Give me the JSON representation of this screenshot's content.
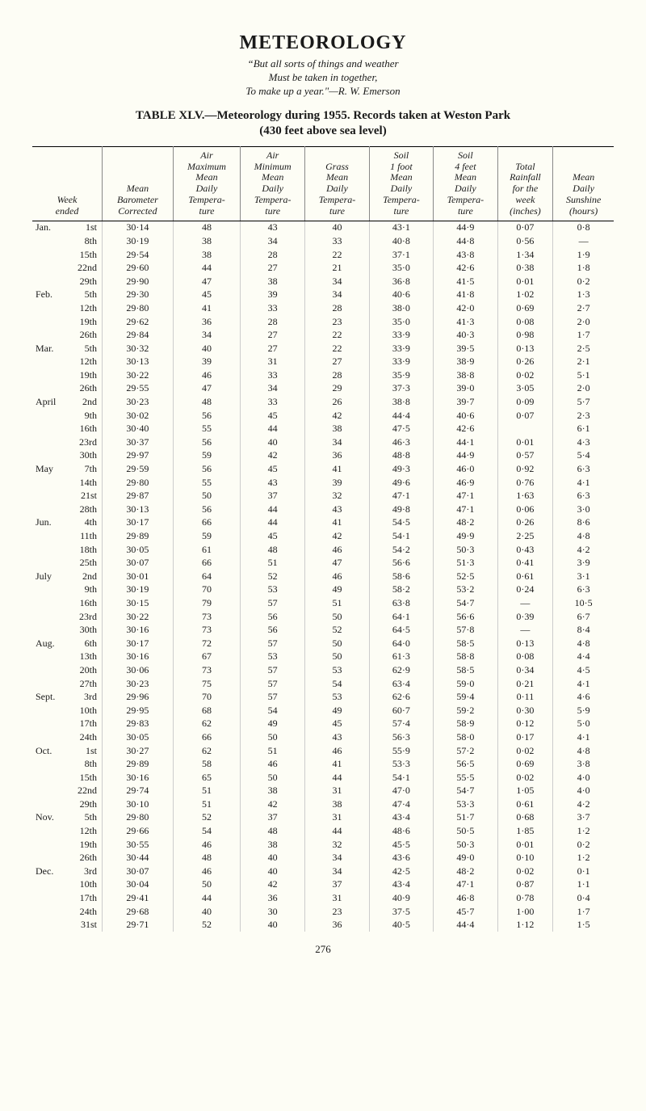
{
  "page": {
    "title": "METEOROLOGY",
    "epigraph_line1": "But all sorts of things and weather",
    "epigraph_line2": "Must be taken in together,",
    "epigraph_line3": "To make up a year.\"—R. W. Emerson",
    "table_title": "TABLE XLV.—Meteorology during 1955.  Records taken at Weston Park",
    "subtitle": "(430 feet above sea level)",
    "page_number": "276"
  },
  "columns": [
    "Week ended",
    "Mean Barometer Corrected",
    "Air Maximum Mean Daily Tempera- ture",
    "Air Minimum Mean Daily Tempera- ture",
    "Grass Mean Daily Tempera- ture",
    "Soil 1 foot Mean Daily Tempera- ture",
    "Soil 4 feet Mean Daily Tempera- ture",
    "Total Rainfall for the week (inches)",
    "Mean Daily Sunshine (hours)"
  ],
  "rows": [
    {
      "month": "Jan.",
      "day": "1st",
      "baro": "30·14",
      "max": "48",
      "min": "43",
      "grass": "40",
      "soil1": "43·1",
      "soil4": "44·9",
      "rain": "0·07",
      "sun": "0·8"
    },
    {
      "month": "",
      "day": "8th",
      "baro": "30·19",
      "max": "38",
      "min": "34",
      "grass": "33",
      "soil1": "40·8",
      "soil4": "44·8",
      "rain": "0·56",
      "sun": "—"
    },
    {
      "month": "",
      "day": "15th",
      "baro": "29·54",
      "max": "38",
      "min": "28",
      "grass": "22",
      "soil1": "37·1",
      "soil4": "43·8",
      "rain": "1·34",
      "sun": "1·9"
    },
    {
      "month": "",
      "day": "22nd",
      "baro": "29·60",
      "max": "44",
      "min": "27",
      "grass": "21",
      "soil1": "35·0",
      "soil4": "42·6",
      "rain": "0·38",
      "sun": "1·8"
    },
    {
      "month": "",
      "day": "29th",
      "baro": "29·90",
      "max": "47",
      "min": "38",
      "grass": "34",
      "soil1": "36·8",
      "soil4": "41·5",
      "rain": "0·01",
      "sun": "0·2"
    },
    {
      "month": "Feb.",
      "day": "5th",
      "baro": "29·30",
      "max": "45",
      "min": "39",
      "grass": "34",
      "soil1": "40·6",
      "soil4": "41·8",
      "rain": "1·02",
      "sun": "1·3"
    },
    {
      "month": "",
      "day": "12th",
      "baro": "29·80",
      "max": "41",
      "min": "33",
      "grass": "28",
      "soil1": "38·0",
      "soil4": "42·0",
      "rain": "0·69",
      "sun": "2·7"
    },
    {
      "month": "",
      "day": "19th",
      "baro": "29·62",
      "max": "36",
      "min": "28",
      "grass": "23",
      "soil1": "35·0",
      "soil4": "41·3",
      "rain": "0·08",
      "sun": "2·0"
    },
    {
      "month": "",
      "day": "26th",
      "baro": "29·84",
      "max": "34",
      "min": "27",
      "grass": "22",
      "soil1": "33·9",
      "soil4": "40·3",
      "rain": "0·98",
      "sun": "1·7"
    },
    {
      "month": "Mar.",
      "day": "5th",
      "baro": "30·32",
      "max": "40",
      "min": "27",
      "grass": "22",
      "soil1": "33·9",
      "soil4": "39·5",
      "rain": "0·13",
      "sun": "2·5"
    },
    {
      "month": "",
      "day": "12th",
      "baro": "30·13",
      "max": "39",
      "min": "31",
      "grass": "27",
      "soil1": "33·9",
      "soil4": "38·9",
      "rain": "0·26",
      "sun": "2·1"
    },
    {
      "month": "",
      "day": "19th",
      "baro": "30·22",
      "max": "46",
      "min": "33",
      "grass": "28",
      "soil1": "35·9",
      "soil4": "38·8",
      "rain": "0·02",
      "sun": "5·1"
    },
    {
      "month": "",
      "day": "26th",
      "baro": "29·55",
      "max": "47",
      "min": "34",
      "grass": "29",
      "soil1": "37·3",
      "soil4": "39·0",
      "rain": "3·05",
      "sun": "2·0"
    },
    {
      "month": "April",
      "day": "2nd",
      "baro": "30·23",
      "max": "48",
      "min": "33",
      "grass": "26",
      "soil1": "38·8",
      "soil4": "39·7",
      "rain": "0·09",
      "sun": "5·7"
    },
    {
      "month": "",
      "day": "9th",
      "baro": "30·02",
      "max": "56",
      "min": "45",
      "grass": "42",
      "soil1": "44·4",
      "soil4": "40·6",
      "rain": "0·07",
      "sun": "2·3"
    },
    {
      "month": "",
      "day": "16th",
      "baro": "30·40",
      "max": "55",
      "min": "44",
      "grass": "38",
      "soil1": "47·5",
      "soil4": "42·6",
      "rain": "",
      "sun": "6·1"
    },
    {
      "month": "",
      "day": "23rd",
      "baro": "30·37",
      "max": "56",
      "min": "40",
      "grass": "34",
      "soil1": "46·3",
      "soil4": "44·1",
      "rain": "0·01",
      "sun": "4·3"
    },
    {
      "month": "",
      "day": "30th",
      "baro": "29·97",
      "max": "59",
      "min": "42",
      "grass": "36",
      "soil1": "48·8",
      "soil4": "44·9",
      "rain": "0·57",
      "sun": "5·4"
    },
    {
      "month": "May",
      "day": "7th",
      "baro": "29·59",
      "max": "56",
      "min": "45",
      "grass": "41",
      "soil1": "49·3",
      "soil4": "46·0",
      "rain": "0·92",
      "sun": "6·3"
    },
    {
      "month": "",
      "day": "14th",
      "baro": "29·80",
      "max": "55",
      "min": "43",
      "grass": "39",
      "soil1": "49·6",
      "soil4": "46·9",
      "rain": "0·76",
      "sun": "4·1"
    },
    {
      "month": "",
      "day": "21st",
      "baro": "29·87",
      "max": "50",
      "min": "37",
      "grass": "32",
      "soil1": "47·1",
      "soil4": "47·1",
      "rain": "1·63",
      "sun": "6·3"
    },
    {
      "month": "",
      "day": "28th",
      "baro": "30·13",
      "max": "56",
      "min": "44",
      "grass": "43",
      "soil1": "49·8",
      "soil4": "47·1",
      "rain": "0·06",
      "sun": "3·0"
    },
    {
      "month": "Jun.",
      "day": "4th",
      "baro": "30·17",
      "max": "66",
      "min": "44",
      "grass": "41",
      "soil1": "54·5",
      "soil4": "48·2",
      "rain": "0·26",
      "sun": "8·6"
    },
    {
      "month": "",
      "day": "11th",
      "baro": "29·89",
      "max": "59",
      "min": "45",
      "grass": "42",
      "soil1": "54·1",
      "soil4": "49·9",
      "rain": "2·25",
      "sun": "4·8"
    },
    {
      "month": "",
      "day": "18th",
      "baro": "30·05",
      "max": "61",
      "min": "48",
      "grass": "46",
      "soil1": "54·2",
      "soil4": "50·3",
      "rain": "0·43",
      "sun": "4·2"
    },
    {
      "month": "",
      "day": "25th",
      "baro": "30·07",
      "max": "66",
      "min": "51",
      "grass": "47",
      "soil1": "56·6",
      "soil4": "51·3",
      "rain": "0·41",
      "sun": "3·9"
    },
    {
      "month": "July",
      "day": "2nd",
      "baro": "30·01",
      "max": "64",
      "min": "52",
      "grass": "46",
      "soil1": "58·6",
      "soil4": "52·5",
      "rain": "0·61",
      "sun": "3·1"
    },
    {
      "month": "",
      "day": "9th",
      "baro": "30·19",
      "max": "70",
      "min": "53",
      "grass": "49",
      "soil1": "58·2",
      "soil4": "53·2",
      "rain": "0·24",
      "sun": "6·3"
    },
    {
      "month": "",
      "day": "16th",
      "baro": "30·15",
      "max": "79",
      "min": "57",
      "grass": "51",
      "soil1": "63·8",
      "soil4": "54·7",
      "rain": "—",
      "sun": "10·5"
    },
    {
      "month": "",
      "day": "23rd",
      "baro": "30·22",
      "max": "73",
      "min": "56",
      "grass": "50",
      "soil1": "64·1",
      "soil4": "56·6",
      "rain": "0·39",
      "sun": "6·7"
    },
    {
      "month": "",
      "day": "30th",
      "baro": "30·16",
      "max": "73",
      "min": "56",
      "grass": "52",
      "soil1": "64·5",
      "soil4": "57·8",
      "rain": "—",
      "sun": "8·4"
    },
    {
      "month": "Aug.",
      "day": "6th",
      "baro": "30·17",
      "max": "72",
      "min": "57",
      "grass": "50",
      "soil1": "64·0",
      "soil4": "58·5",
      "rain": "0·13",
      "sun": "4·8"
    },
    {
      "month": "",
      "day": "13th",
      "baro": "30·16",
      "max": "67",
      "min": "53",
      "grass": "50",
      "soil1": "61·3",
      "soil4": "58·8",
      "rain": "0·08",
      "sun": "4·4"
    },
    {
      "month": "",
      "day": "20th",
      "baro": "30·06",
      "max": "73",
      "min": "57",
      "grass": "53",
      "soil1": "62·9",
      "soil4": "58·5",
      "rain": "0·34",
      "sun": "4·5"
    },
    {
      "month": "",
      "day": "27th",
      "baro": "30·23",
      "max": "75",
      "min": "57",
      "grass": "54",
      "soil1": "63·4",
      "soil4": "59·0",
      "rain": "0·21",
      "sun": "4·1"
    },
    {
      "month": "Sept.",
      "day": "3rd",
      "baro": "29·96",
      "max": "70",
      "min": "57",
      "grass": "53",
      "soil1": "62·6",
      "soil4": "59·4",
      "rain": "0·11",
      "sun": "4·6"
    },
    {
      "month": "",
      "day": "10th",
      "baro": "29·95",
      "max": "68",
      "min": "54",
      "grass": "49",
      "soil1": "60·7",
      "soil4": "59·2",
      "rain": "0·30",
      "sun": "5·9"
    },
    {
      "month": "",
      "day": "17th",
      "baro": "29·83",
      "max": "62",
      "min": "49",
      "grass": "45",
      "soil1": "57·4",
      "soil4": "58·9",
      "rain": "0·12",
      "sun": "5·0"
    },
    {
      "month": "",
      "day": "24th",
      "baro": "30·05",
      "max": "66",
      "min": "50",
      "grass": "43",
      "soil1": "56·3",
      "soil4": "58·0",
      "rain": "0·17",
      "sun": "4·1"
    },
    {
      "month": "Oct.",
      "day": "1st",
      "baro": "30·27",
      "max": "62",
      "min": "51",
      "grass": "46",
      "soil1": "55·9",
      "soil4": "57·2",
      "rain": "0·02",
      "sun": "4·8"
    },
    {
      "month": "",
      "day": "8th",
      "baro": "29·89",
      "max": "58",
      "min": "46",
      "grass": "41",
      "soil1": "53·3",
      "soil4": "56·5",
      "rain": "0·69",
      "sun": "3·8"
    },
    {
      "month": "",
      "day": "15th",
      "baro": "30·16",
      "max": "65",
      "min": "50",
      "grass": "44",
      "soil1": "54·1",
      "soil4": "55·5",
      "rain": "0·02",
      "sun": "4·0"
    },
    {
      "month": "",
      "day": "22nd",
      "baro": "29·74",
      "max": "51",
      "min": "38",
      "grass": "31",
      "soil1": "47·0",
      "soil4": "54·7",
      "rain": "1·05",
      "sun": "4·0"
    },
    {
      "month": "",
      "day": "29th",
      "baro": "30·10",
      "max": "51",
      "min": "42",
      "grass": "38",
      "soil1": "47·4",
      "soil4": "53·3",
      "rain": "0·61",
      "sun": "4·2"
    },
    {
      "month": "Nov.",
      "day": "5th",
      "baro": "29·80",
      "max": "52",
      "min": "37",
      "grass": "31",
      "soil1": "43·4",
      "soil4": "51·7",
      "rain": "0·68",
      "sun": "3·7"
    },
    {
      "month": "",
      "day": "12th",
      "baro": "29·66",
      "max": "54",
      "min": "48",
      "grass": "44",
      "soil1": "48·6",
      "soil4": "50·5",
      "rain": "1·85",
      "sun": "1·2"
    },
    {
      "month": "",
      "day": "19th",
      "baro": "30·55",
      "max": "46",
      "min": "38",
      "grass": "32",
      "soil1": "45·5",
      "soil4": "50·3",
      "rain": "0·01",
      "sun": "0·2"
    },
    {
      "month": "",
      "day": "26th",
      "baro": "30·44",
      "max": "48",
      "min": "40",
      "grass": "34",
      "soil1": "43·6",
      "soil4": "49·0",
      "rain": "0·10",
      "sun": "1·2"
    },
    {
      "month": "Dec.",
      "day": "3rd",
      "baro": "30·07",
      "max": "46",
      "min": "40",
      "grass": "34",
      "soil1": "42·5",
      "soil4": "48·2",
      "rain": "0·02",
      "sun": "0·1"
    },
    {
      "month": "",
      "day": "10th",
      "baro": "30·04",
      "max": "50",
      "min": "42",
      "grass": "37",
      "soil1": "43·4",
      "soil4": "47·1",
      "rain": "0·87",
      "sun": "1·1"
    },
    {
      "month": "",
      "day": "17th",
      "baro": "29·41",
      "max": "44",
      "min": "36",
      "grass": "31",
      "soil1": "40·9",
      "soil4": "46·8",
      "rain": "0·78",
      "sun": "0·4"
    },
    {
      "month": "",
      "day": "24th",
      "baro": "29·68",
      "max": "40",
      "min": "30",
      "grass": "23",
      "soil1": "37·5",
      "soil4": "45·7",
      "rain": "1·00",
      "sun": "1·7"
    },
    {
      "month": "",
      "day": "31st",
      "baro": "29·71",
      "max": "52",
      "min": "40",
      "grass": "36",
      "soil1": "40·5",
      "soil4": "44·4",
      "rain": "1·12",
      "sun": "1·5"
    }
  ]
}
